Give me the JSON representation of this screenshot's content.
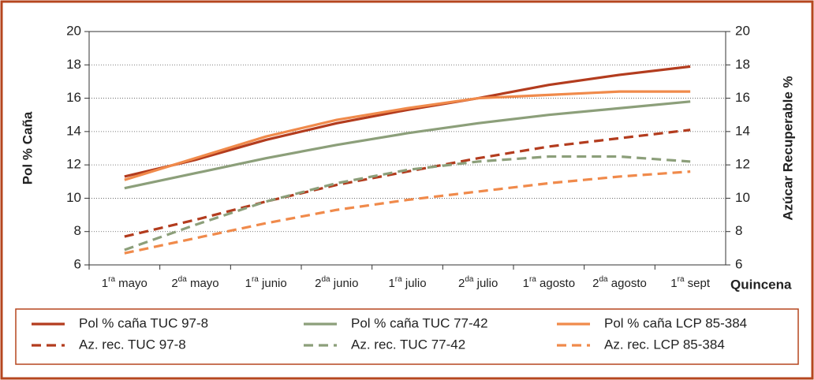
{
  "chart_data": {
    "type": "line",
    "y_label": "Pol % Caña",
    "y2_label": "Azúcar Recuperable %",
    "x_label": "Quincena",
    "categories": [
      "1ra mayo",
      "2da mayo",
      "1ra junio",
      "2da junio",
      "1ra julio",
      "2da julio",
      "1ra agosto",
      "2da agosto",
      "1ra sept"
    ],
    "ylim": [
      6,
      20
    ],
    "yticks": [
      6,
      8,
      10,
      12,
      14,
      16,
      18,
      20
    ],
    "y2lim": [
      6,
      20
    ],
    "y2ticks": [
      6,
      8,
      10,
      12,
      14,
      16,
      18,
      20
    ],
    "grid": true,
    "series": [
      {
        "name": "Pol % caña TUC 97-8",
        "color": "#b33c1e",
        "dashed": false,
        "values": [
          11.3,
          12.3,
          13.5,
          14.5,
          15.3,
          16.0,
          16.8,
          17.4,
          17.9
        ]
      },
      {
        "name": "Pol % caña TUC 77-42",
        "color": "#8c9f7a",
        "dashed": false,
        "values": [
          10.6,
          11.5,
          12.4,
          13.2,
          13.9,
          14.5,
          15.0,
          15.4,
          15.8
        ]
      },
      {
        "name": "Pol % caña LCP 85-384",
        "color": "#f08a4b",
        "dashed": false,
        "values": [
          11.1,
          12.4,
          13.7,
          14.7,
          15.4,
          16.0,
          16.2,
          16.4,
          16.4
        ]
      },
      {
        "name": "Az. rec. TUC 97-8",
        "color": "#b33c1e",
        "dashed": true,
        "axis": "y2",
        "values": [
          7.7,
          8.7,
          9.8,
          10.8,
          11.6,
          12.4,
          13.1,
          13.6,
          14.1
        ]
      },
      {
        "name": "Az. rec. TUC 77-42",
        "color": "#8c9f7a",
        "dashed": true,
        "axis": "y2",
        "values": [
          6.9,
          8.4,
          9.8,
          10.9,
          11.7,
          12.2,
          12.5,
          12.5,
          12.2
        ]
      },
      {
        "name": "Az. rec. LCP 85-384",
        "color": "#f08a4b",
        "dashed": true,
        "axis": "y2",
        "values": [
          6.7,
          7.6,
          8.5,
          9.3,
          9.9,
          10.4,
          10.9,
          11.3,
          11.6
        ]
      }
    ]
  }
}
